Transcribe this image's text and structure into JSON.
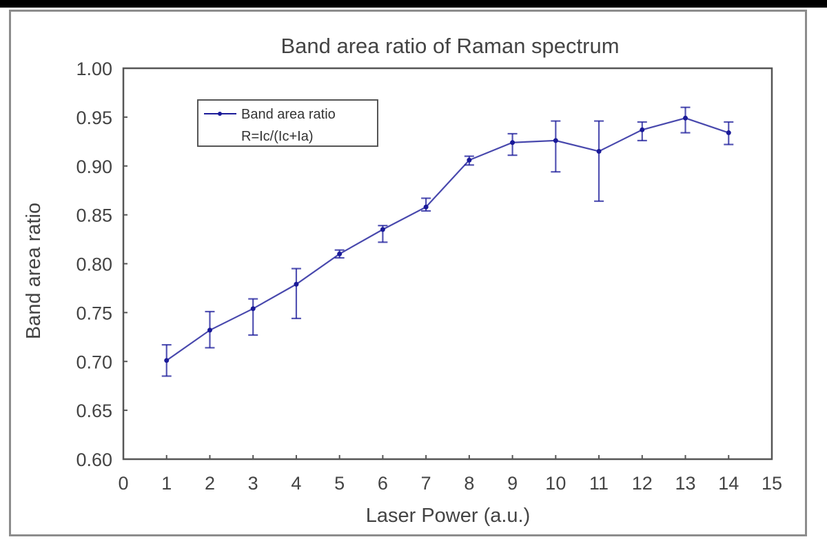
{
  "chart_data": {
    "type": "line",
    "title": "Band area ratio of Raman spectrum",
    "xlabel": "Laser Power (a.u.)",
    "ylabel": "Band area ratio",
    "xlim": [
      0,
      15
    ],
    "ylim": [
      0.6,
      1.0
    ],
    "xticks": [
      "0",
      "1",
      "2",
      "3",
      "4",
      "5",
      "6",
      "7",
      "8",
      "9",
      "10",
      "11",
      "12",
      "13",
      "14",
      "15"
    ],
    "yticks": [
      "0.60",
      "0.65",
      "0.70",
      "0.75",
      "0.80",
      "0.85",
      "0.90",
      "0.95",
      "1.00"
    ],
    "grid": false,
    "legend_position": "upper-left",
    "series": [
      {
        "name": "Band area ratio R=Ic/(Ic+Ia)",
        "color": "#1a1a99",
        "marker": "dot",
        "error_bars": true,
        "x": [
          1,
          2,
          3,
          4,
          5,
          6,
          7,
          8,
          9,
          10,
          11,
          12,
          13,
          14
        ],
        "values": [
          0.701,
          0.732,
          0.754,
          0.779,
          0.81,
          0.835,
          0.858,
          0.906,
          0.924,
          0.926,
          0.915,
          0.937,
          0.949,
          0.934
        ],
        "err_low": [
          0.685,
          0.714,
          0.727,
          0.744,
          0.806,
          0.822,
          0.854,
          0.901,
          0.911,
          0.894,
          0.864,
          0.926,
          0.934,
          0.922
        ],
        "err_high": [
          0.717,
          0.751,
          0.764,
          0.795,
          0.814,
          0.839,
          0.867,
          0.91,
          0.933,
          0.946,
          0.946,
          0.945,
          0.96,
          0.945
        ]
      }
    ]
  },
  "legend": {
    "line1": "Band area ratio",
    "line2": "R=Ic/(Ic+Ia)"
  }
}
